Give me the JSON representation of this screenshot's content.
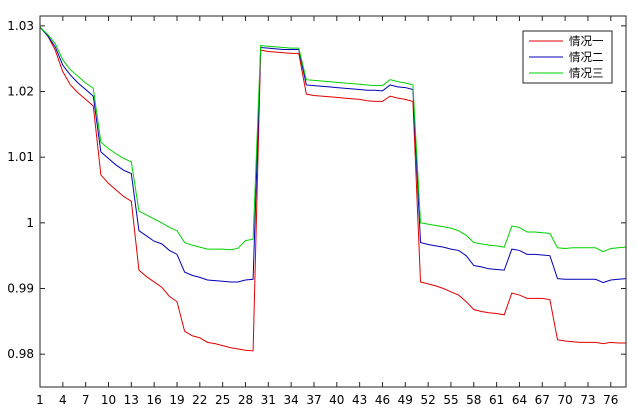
{
  "chart_data": {
    "type": "line",
    "title": "",
    "xlabel": "",
    "ylabel": "",
    "xlim": [
      1,
      78
    ],
    "ylim": [
      0.975,
      1.0315
    ],
    "grid": false,
    "legend_position": "top-right",
    "xticks": [
      1,
      4,
      7,
      10,
      13,
      16,
      19,
      22,
      25,
      28,
      31,
      34,
      37,
      40,
      43,
      46,
      49,
      52,
      55,
      58,
      61,
      64,
      67,
      70,
      73,
      76
    ],
    "yticks": [
      0.98,
      0.99,
      1.0,
      1.01,
      1.02,
      1.03
    ],
    "ytick_labels": [
      "0.98",
      "0.99",
      "1",
      "1.01",
      "1.02",
      "1.03"
    ],
    "x": [
      1,
      2,
      3,
      4,
      5,
      6,
      7,
      8,
      9,
      10,
      11,
      12,
      13,
      14,
      15,
      16,
      17,
      18,
      19,
      20,
      21,
      22,
      23,
      24,
      25,
      26,
      27,
      28,
      29,
      30,
      31,
      32,
      33,
      34,
      35,
      36,
      37,
      38,
      39,
      40,
      41,
      42,
      43,
      44,
      45,
      46,
      47,
      48,
      49,
      50,
      51,
      52,
      53,
      54,
      55,
      56,
      57,
      58,
      59,
      60,
      61,
      62,
      63,
      64,
      65,
      66,
      67,
      68,
      69,
      70,
      71,
      72,
      73,
      74,
      75,
      76,
      77,
      78
    ],
    "series": [
      {
        "name": "情况一",
        "color": "#e00000",
        "values": [
          1.0298,
          1.0285,
          1.0263,
          1.023,
          1.021,
          1.0198,
          1.0188,
          1.0178,
          1.0073,
          1.006,
          1.005,
          1.004,
          1.0033,
          0.9928,
          0.9918,
          0.991,
          0.9902,
          0.9888,
          0.988,
          0.9835,
          0.9828,
          0.9825,
          0.9818,
          0.9816,
          0.9813,
          0.981,
          0.9808,
          0.9806,
          0.9805,
          1.0263,
          1.0261,
          1.026,
          1.0259,
          1.0258,
          1.0258,
          1.0196,
          1.0194,
          1.0193,
          1.0192,
          1.0191,
          1.019,
          1.0189,
          1.0188,
          1.0186,
          1.0185,
          1.0185,
          1.0193,
          1.019,
          1.0188,
          1.0185,
          0.991,
          0.9907,
          0.9904,
          0.99,
          0.9895,
          0.989,
          0.988,
          0.9868,
          0.9865,
          0.9863,
          0.9862,
          0.986,
          0.9893,
          0.989,
          0.9885,
          0.9885,
          0.9885,
          0.9883,
          0.9822,
          0.982,
          0.9819,
          0.9818,
          0.9818,
          0.9818,
          0.9816,
          0.9818,
          0.9817,
          0.9817
        ]
      },
      {
        "name": "情况二",
        "color": "#0000b4",
        "values": [
          1.0298,
          1.0285,
          1.0268,
          1.024,
          1.0225,
          1.0213,
          1.0203,
          1.0193,
          1.0108,
          1.0098,
          1.0088,
          1.008,
          1.0075,
          0.9988,
          0.998,
          0.9972,
          0.9968,
          0.9958,
          0.9952,
          0.9925,
          0.992,
          0.9917,
          0.9913,
          0.9912,
          0.9911,
          0.991,
          0.991,
          0.9913,
          0.9914,
          1.0267,
          1.0266,
          1.0265,
          1.0264,
          1.0264,
          1.0264,
          1.021,
          1.0209,
          1.0208,
          1.0207,
          1.0206,
          1.0205,
          1.0204,
          1.0203,
          1.0202,
          1.0202,
          1.0201,
          1.021,
          1.0207,
          1.0206,
          1.0203,
          0.997,
          0.9967,
          0.9965,
          0.9963,
          0.996,
          0.9958,
          0.995,
          0.9935,
          0.9933,
          0.993,
          0.9929,
          0.9928,
          0.996,
          0.9958,
          0.9952,
          0.9952,
          0.9951,
          0.995,
          0.9915,
          0.9914,
          0.9914,
          0.9914,
          0.9914,
          0.9914,
          0.9909,
          0.9913,
          0.9914,
          0.9915
        ]
      },
      {
        "name": "情况三",
        "color": "#00d200",
        "values": [
          1.0298,
          1.0287,
          1.0273,
          1.0248,
          1.0233,
          1.0223,
          1.0213,
          1.0205,
          1.0123,
          1.0113,
          1.0105,
          1.0098,
          1.0093,
          1.0018,
          1.0012,
          1.0006,
          1.0,
          0.9993,
          0.9988,
          0.997,
          0.9966,
          0.9963,
          0.996,
          0.996,
          0.996,
          0.9959,
          0.9961,
          0.9973,
          0.9975,
          1.027,
          1.0269,
          1.0268,
          1.0267,
          1.0266,
          1.0266,
          1.0218,
          1.0217,
          1.0216,
          1.0215,
          1.0214,
          1.0213,
          1.0212,
          1.0211,
          1.021,
          1.0209,
          1.0209,
          1.0218,
          1.0215,
          1.0213,
          1.021,
          1.0,
          0.9998,
          0.9996,
          0.9994,
          0.9992,
          0.9988,
          0.9981,
          0.997,
          0.9968,
          0.9966,
          0.9965,
          0.9963,
          0.9995,
          0.9993,
          0.9986,
          0.9986,
          0.9985,
          0.9984,
          0.9962,
          0.9961,
          0.9962,
          0.9962,
          0.9962,
          0.9962,
          0.9956,
          0.9961,
          0.9962,
          0.9963
        ]
      }
    ]
  }
}
